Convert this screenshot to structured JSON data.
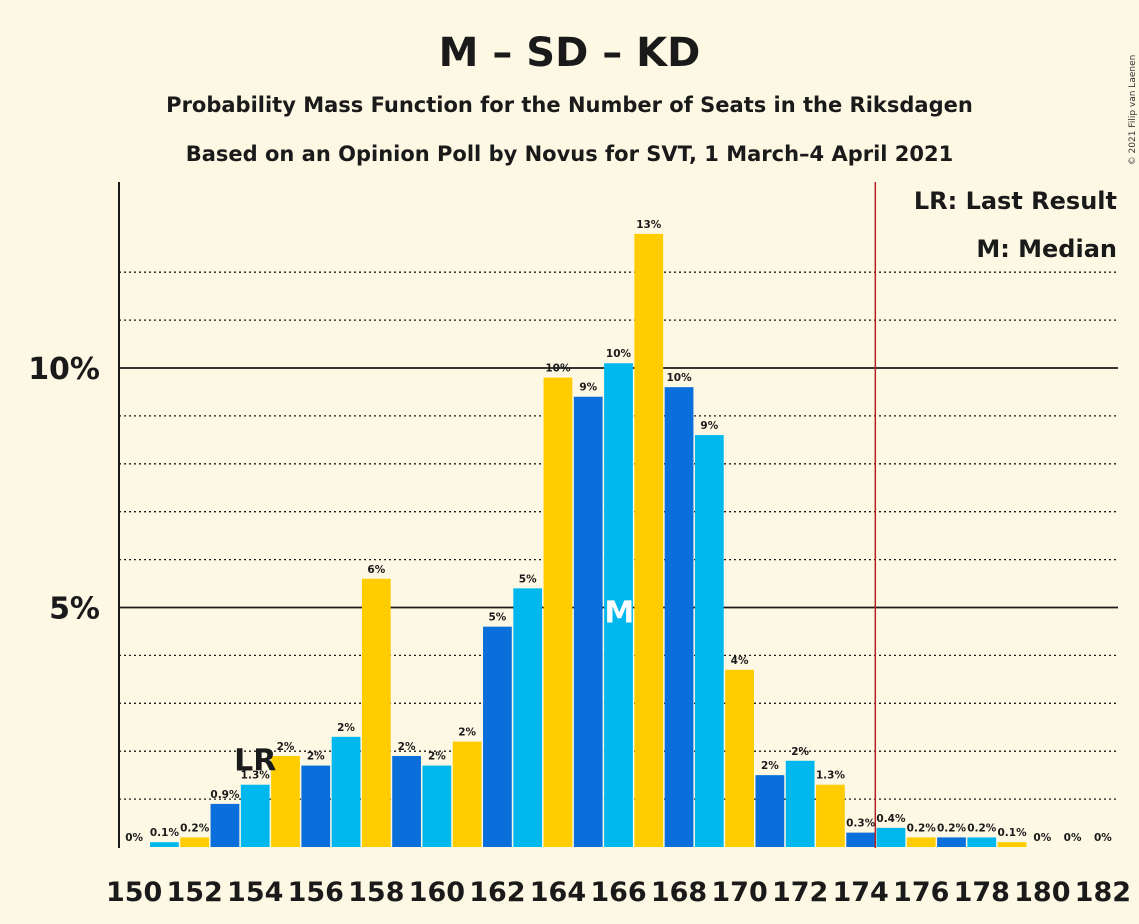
{
  "title": "M – SD – KD",
  "subtitle1": "Probability Mass Function for the Number of Seats in the Riksdagen",
  "subtitle2": "Based on an Opinion Poll by Novus for SVT, 1 March–4 April 2021",
  "copyright": "© 2021 Filip van Laenen",
  "legend": {
    "lr": "LR: Last Result",
    "median": "M: Median"
  },
  "colors": {
    "background": "#fdf8e4",
    "series": [
      "#0a6fdb",
      "#00b8ee",
      "#ffcc00"
    ],
    "majority_line": "#b22222",
    "text": "#1a1a1a"
  },
  "chart_data": {
    "type": "bar",
    "x": [
      150,
      151,
      152,
      153,
      154,
      155,
      156,
      157,
      158,
      159,
      160,
      161,
      162,
      163,
      164,
      165,
      166,
      167,
      168,
      169,
      170,
      171,
      172,
      173,
      174,
      175,
      176,
      177,
      178,
      179,
      180,
      181,
      182
    ],
    "values": [
      0,
      0.1,
      0.2,
      0.9,
      1.3,
      1.9,
      1.7,
      2.3,
      5.6,
      1.9,
      1.7,
      2.2,
      4.6,
      5.4,
      9.8,
      9.4,
      10.1,
      12.8,
      9.6,
      8.6,
      3.7,
      1.5,
      1.8,
      1.3,
      0.3,
      0.4,
      0.2,
      0.2,
      0.2,
      0.1,
      0,
      0,
      0
    ],
    "value_labels": [
      "0%",
      "0.1%",
      "0.2%",
      "0.9%",
      "1.3%",
      "2%",
      "2%",
      "2%",
      "6%",
      "2%",
      "2%",
      "2%",
      "5%",
      "5%",
      "10%",
      "9%",
      "10%",
      "13%",
      "10%",
      "9%",
      "4%",
      "2%",
      "2%",
      "1.3%",
      "0.3%",
      "0.4%",
      "0.2%",
      "0.2%",
      "0.2%",
      "0.1%",
      "0%",
      "0%",
      "0%"
    ],
    "x_tick_labels": [
      "150",
      "152",
      "154",
      "156",
      "158",
      "160",
      "162",
      "164",
      "166",
      "168",
      "170",
      "172",
      "174",
      "176",
      "178",
      "180",
      "182"
    ],
    "y_tick_labels": [
      {
        "value": 5,
        "label": "5%"
      },
      {
        "value": 10,
        "label": "10%"
      }
    ],
    "ylim": [
      0,
      13.8
    ],
    "grid": "dotted every 1%, solid at 5% and 10%",
    "last_result": {
      "x": 154,
      "label": "LR"
    },
    "median": {
      "x": 166,
      "label": "M"
    },
    "majority_threshold": 175,
    "legend_position": "top-right"
  }
}
